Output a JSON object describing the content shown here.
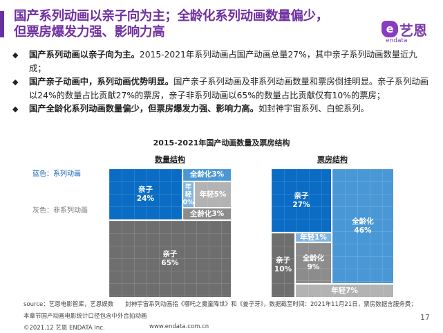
{
  "header": {
    "title_line1": "国产系列动画以亲子向为主；全龄化系列动画数量偏少，",
    "title_line2": "但票房爆发力强、影响力高",
    "logo_cn": "艺恩",
    "logo_en": "endata"
  },
  "bullets": [
    {
      "bold": "国产系列动画以亲子向为主。",
      "text": "2015-2021年系列动画占国产动画总量27%，其中亲子系列动画数量近九成；"
    },
    {
      "bold": "国产亲子动画中，系列动画优势明显。",
      "text": "国产亲子系列动画及非系列动画数量和票房倒挂明显。亲子系列动画以24%的数量占比贡献27%的票房，亲子非系列动画以65%的数量占比贡献仅有10%的票房；"
    },
    {
      "bold": "国产全龄化系列动画数量偏少，但票房爆发力强、影响力高。",
      "text": "如封神宇宙系列、白蛇系列。"
    }
  ],
  "chart_data": [
    {
      "type": "treemap",
      "title": "2015-2021年国产动画数量及票房结构",
      "subtitle": "数量结构",
      "legend": [
        {
          "label": "蓝色：系列动画",
          "color": "#0a6cc4"
        },
        {
          "label": "灰色：非系列动画",
          "color": "#6e6e6e"
        }
      ],
      "cells": [
        {
          "group": "系列",
          "label": "亲子",
          "value": "24%",
          "color": "#0a6cc4"
        },
        {
          "group": "系列",
          "label": "全龄化",
          "value": "3%",
          "color": "#4a97d6"
        },
        {
          "group": "系列",
          "label": "年轻",
          "value": "0%",
          "color": "#7fb5e4"
        },
        {
          "group": "非系列",
          "label": "年轻",
          "value": "5%",
          "color": "#b3b3b3"
        },
        {
          "group": "非系列",
          "label": "全龄化",
          "value": "3%",
          "color": "#8c8c8c"
        },
        {
          "group": "非系列",
          "label": "亲子",
          "value": "65%",
          "color": "#6e6e6e"
        }
      ]
    },
    {
      "type": "treemap",
      "subtitle": "票房结构",
      "cells": [
        {
          "group": "系列",
          "label": "亲子",
          "value": "27%",
          "color": "#0a6cc4"
        },
        {
          "group": "系列",
          "label": "全龄化",
          "value": "46%",
          "color": "#4a97d6"
        },
        {
          "group": "系列",
          "label": "年轻",
          "value": "1%",
          "color": "#7fb5e4"
        },
        {
          "group": "非系列",
          "label": "亲子",
          "value": "10%",
          "color": "#6e6e6e"
        },
        {
          "group": "非系列",
          "label": "全龄化",
          "value": "9%",
          "color": "#8c8c8c"
        },
        {
          "group": "非系列",
          "label": "年轻",
          "value": "7%",
          "color": "#b3b3b3"
        }
      ]
    }
  ],
  "footer": {
    "source": "source：艺恩电影智库，艺恩娱数　　封神宇宙系列动画指《哪吒之魔童降世》和《姜子牙》，数据截至时间：2021年11月21日，票房数据含服务费；",
    "note": "本章节国产动画电影统计口径包含中外合拍动画",
    "copyright": "©2021.12 艺恩 ENDATA Inc.",
    "url": "www.endata.com.cn",
    "page": "17"
  }
}
